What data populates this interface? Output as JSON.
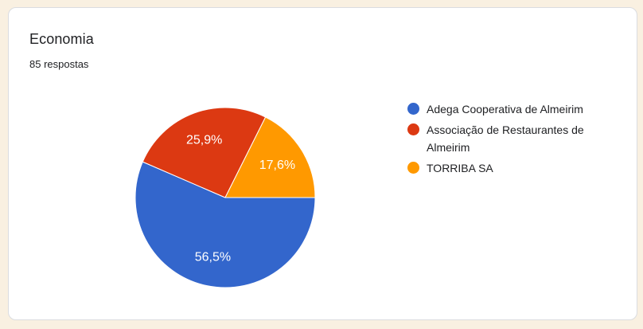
{
  "page": {
    "background_color": "#F9F0E1"
  },
  "card": {
    "title": "Economia",
    "responses": "85 respostas",
    "background_color": "#FFFFFF",
    "border_color": "#DADCE0"
  },
  "chart_data": {
    "type": "pie",
    "title": "Economia",
    "subtitle": "85 respostas",
    "total_responses": 85,
    "start_angle_deg": 0,
    "direction": "clockwise",
    "legend_position": "right",
    "label_text_color": "#FFFFFF",
    "slices": [
      {
        "label": "Adega Cooperativa de Almeirim",
        "percent": 56.5,
        "percent_label": "56,5%",
        "color": "#3366CC"
      },
      {
        "label": "Associação de Restaurantes de Almeirim",
        "percent": 25.9,
        "percent_label": "25,9%",
        "color": "#DC3912"
      },
      {
        "label": "TORRIBA SA",
        "percent": 17.6,
        "percent_label": "17,6%",
        "color": "#FF9900"
      }
    ]
  }
}
